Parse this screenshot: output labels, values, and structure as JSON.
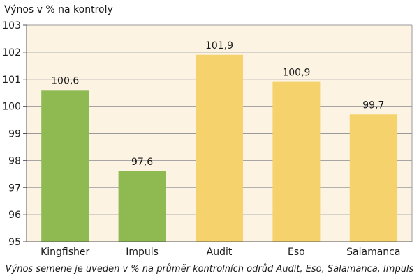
{
  "chart_data": {
    "type": "bar",
    "title": "Výnos v % na kontroly",
    "categories": [
      "Kingfisher",
      "Impuls",
      "Audit",
      "Eso",
      "Salamanca"
    ],
    "values": [
      100.6,
      97.6,
      101.9,
      100.9,
      99.7
    ],
    "value_labels": [
      "100,6",
      "97,6",
      "101,9",
      "100,9",
      "99,7"
    ],
    "bar_colors": [
      "#8fba52",
      "#8fba52",
      "#f5d26b",
      "#f5d26b",
      "#f5d26b"
    ],
    "ylim": [
      95,
      103
    ],
    "yticks": [
      95,
      96,
      97,
      98,
      99,
      100,
      101,
      102,
      103
    ],
    "grid": true,
    "xlabel": "",
    "ylabel": "",
    "caption": "Výnos semene je uveden v % na průměr kontrolních odrůd Audit, Eso, Salamanca, Impuls"
  },
  "colors": {
    "plot_background": "#fcf3e3",
    "grid": "#9a9a9a",
    "axis": "#555555"
  }
}
